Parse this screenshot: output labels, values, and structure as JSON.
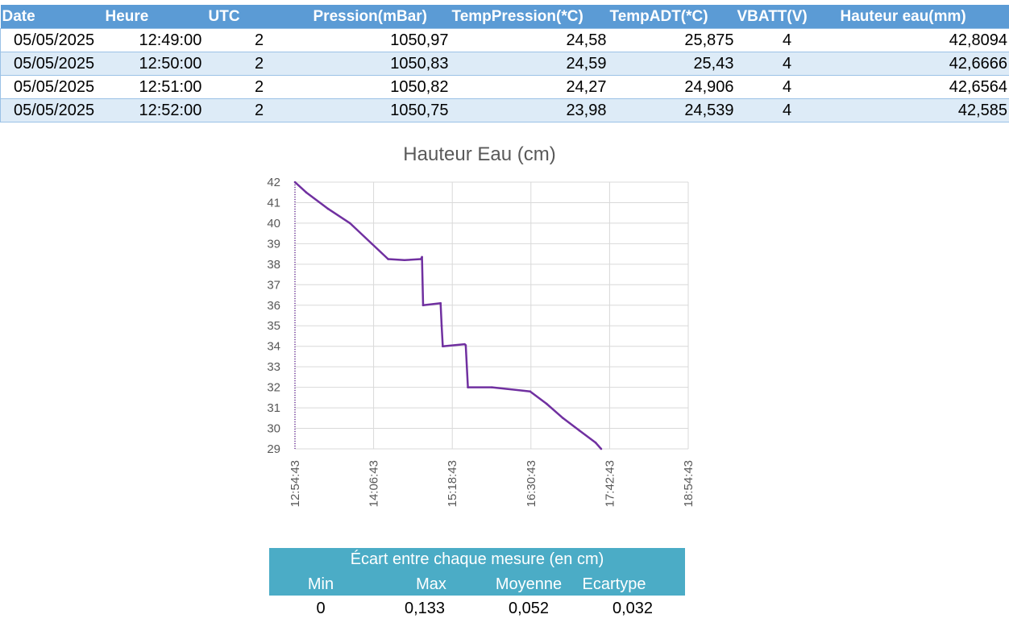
{
  "table": {
    "headers": [
      "Date",
      "Heure",
      "UTC",
      "Pression(mBar)",
      "TempPression(*C)",
      "TempADT(*C)",
      "VBATT(V)",
      "Hauteur eau(mm)"
    ],
    "rows": [
      [
        "05/05/2025",
        "12:49:00",
        "2",
        "1050,97",
        "24,58",
        "25,875",
        "4",
        "42,8094"
      ],
      [
        "05/05/2025",
        "12:50:00",
        "2",
        "1050,83",
        "24,59",
        "25,43",
        "4",
        "42,6666"
      ],
      [
        "05/05/2025",
        "12:51:00",
        "2",
        "1050,82",
        "24,27",
        "24,906",
        "4",
        "42,6564"
      ],
      [
        "05/05/2025",
        "12:52:00",
        "2",
        "1050,75",
        "23,98",
        "24,539",
        "4",
        "42,585"
      ]
    ]
  },
  "chart_data": {
    "type": "line",
    "title": "Hauteur Eau (cm)",
    "xlabel": "",
    "ylabel": "",
    "x_ticks": [
      "12:54:43",
      "14:06:43",
      "15:18:43",
      "16:30:43",
      "17:42:43",
      "18:54:43"
    ],
    "y_ticks": [
      42,
      41,
      40,
      39,
      38,
      37,
      36,
      35,
      34,
      33,
      32,
      31,
      30,
      29
    ],
    "ylim": [
      29,
      42
    ],
    "xlim": [
      "12:54:43",
      "18:54:43"
    ],
    "grid": true,
    "line_color": "#7030a0",
    "series": [
      {
        "name": "",
        "x": [
          "12:54:43",
          "13:05:00",
          "13:25:00",
          "13:45:00",
          "14:05:00",
          "14:20:00",
          "14:35:00",
          "14:50:00",
          "14:51:00",
          "14:52:00",
          "15:08:00",
          "15:09:00",
          "15:10:00",
          "15:30:00",
          "15:31:00",
          "15:33:00",
          "15:55:00",
          "16:30:00",
          "16:45:00",
          "17:00:00",
          "17:15:00",
          "17:30:00",
          "17:35:00"
        ],
        "values": [
          42.0,
          41.5,
          40.7,
          40.0,
          39.0,
          38.25,
          38.2,
          38.25,
          38.35,
          36.0,
          36.1,
          35.0,
          34.0,
          34.1,
          34.05,
          32.0,
          32.0,
          31.8,
          31.2,
          30.5,
          29.9,
          29.3,
          29.0
        ]
      }
    ]
  },
  "stats": {
    "title": "Écart entre chaque mesure (en cm)",
    "headers": [
      "Min",
      "Max",
      "Moyenne",
      "Ecartype"
    ],
    "values": [
      "0",
      "0,133",
      "0,052",
      "0,032"
    ]
  },
  "colors": {
    "table_header": "#5b9bd5",
    "table_band": "#ddebf7",
    "stats_header": "#4bacc6"
  }
}
